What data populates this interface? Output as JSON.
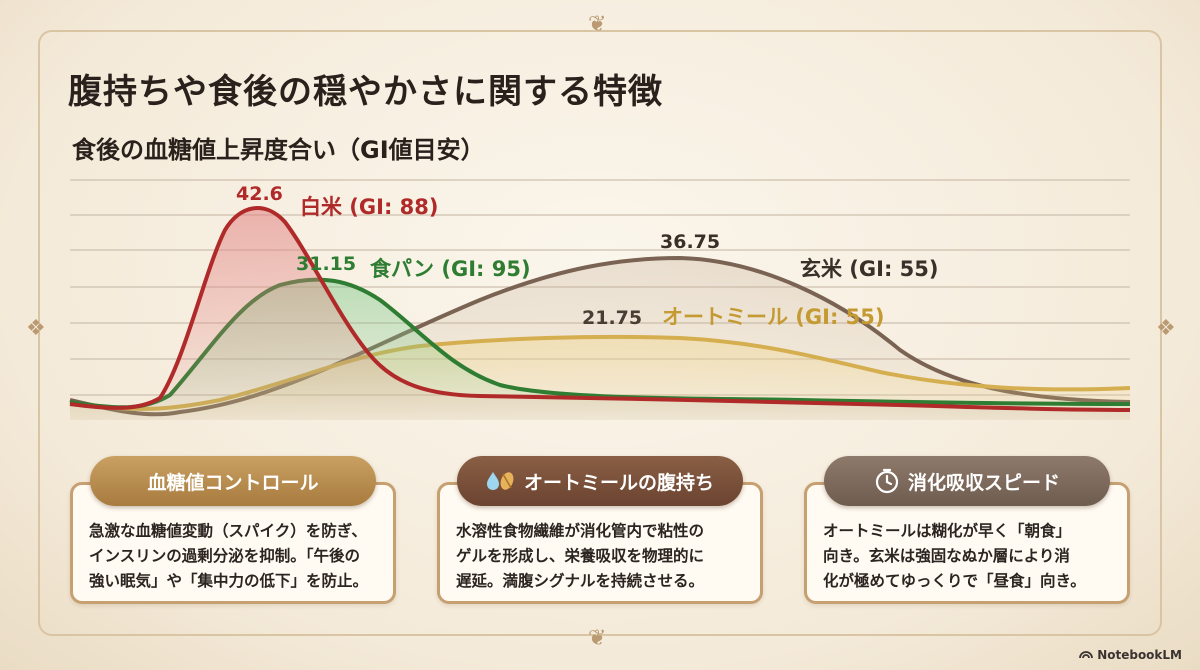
{
  "title": "腹持ちや食後の穏やかさに関する特徴",
  "subtitle": "食後の血糖値上昇度合い（GI値目安）",
  "colors": {
    "rice": "#b02a2a",
    "bread": "#2e7d32",
    "brown_rice": "#7a6352",
    "oatmeal": "#d4ae4f",
    "grid": "#cdbfae"
  },
  "chart_data": {
    "type": "area",
    "title": "食後の血糖値上昇度合い（GI値目安）",
    "grid": true,
    "legend": "inline-labels",
    "series": [
      {
        "name": "白米 (GI: 88)",
        "peak_label": "42.6",
        "peak": 42.6,
        "color": "#b02a2a"
      },
      {
        "name": "食パン (GI: 95)",
        "peak_label": "31.15",
        "peak": 31.15,
        "color": "#2e7d32"
      },
      {
        "name": "玄米 (GI: 55)",
        "peak_label": "36.75",
        "peak": 36.75,
        "color": "#7a6352"
      },
      {
        "name": "オートミール (GI: 55)",
        "peak_label": "21.75",
        "peak": 21.75,
        "color": "#d4ae4f"
      }
    ]
  },
  "cards": [
    {
      "title": "血糖値コントロール",
      "icon": "none",
      "lines": [
        "急激な血糖値変動（スパイク）を防ぎ、",
        "インスリンの過剰分泌を抑制。「午後の",
        "強い眠気」や「集中力の低下」を防止。"
      ]
    },
    {
      "title": "オートミールの腹持ち",
      "icon": "water-drop-grain-icon",
      "lines": [
        "水溶性食物繊維が消化管内で粘性の",
        "ゲルを形成し、栄養吸収を物理的に",
        "遅延。満腹シグナルを持続させる。"
      ]
    },
    {
      "title": "消化吸収スピード",
      "icon": "timer-icon",
      "lines": [
        "オートミールは糊化が早く「朝食」",
        "向き。玄米は強固なぬか層により消",
        "化が極めてゆっくりで「昼食」向き。"
      ]
    }
  ],
  "watermark": "NotebookLM"
}
